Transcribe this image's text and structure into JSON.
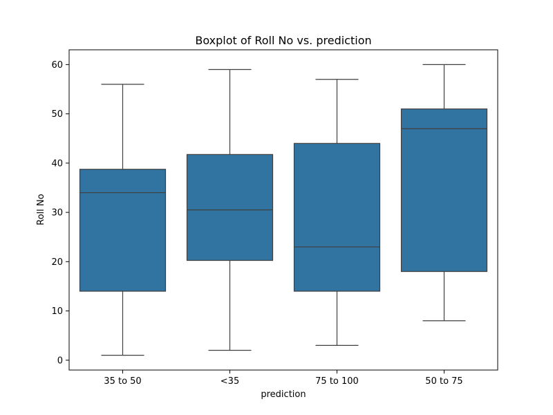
{
  "chart_data": {
    "type": "boxplot",
    "title": "Boxplot of Roll No vs. prediction",
    "xlabel": "prediction",
    "ylabel": "Roll No",
    "ylim": [
      -2,
      63
    ],
    "yticks": [
      0,
      10,
      20,
      30,
      40,
      50,
      60
    ],
    "categories": [
      "35 to 50",
      "<35",
      "75 to 100",
      "50 to 75"
    ],
    "boxes": [
      {
        "category": "35 to 50",
        "min": 1,
        "q1": 14,
        "median": 34,
        "q3": 38.75,
        "max": 56
      },
      {
        "category": "<35",
        "min": 2,
        "q1": 20.25,
        "median": 30.5,
        "q3": 41.75,
        "max": 59
      },
      {
        "category": "75 to 100",
        "min": 3,
        "q1": 14,
        "median": 23,
        "q3": 44,
        "max": 57
      },
      {
        "category": "50 to 75",
        "min": 8,
        "q1": 18,
        "median": 47,
        "q3": 51,
        "max": 60
      }
    ],
    "box_color": "#3274a1",
    "line_color": "#3f3f3f",
    "grid": false,
    "legend": "none"
  }
}
